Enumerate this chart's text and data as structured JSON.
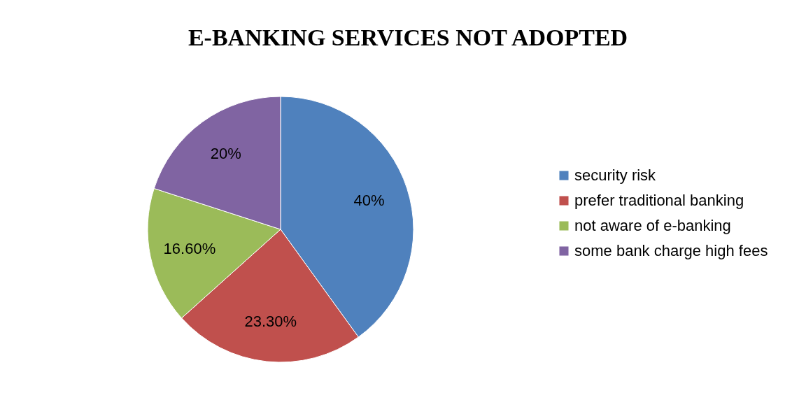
{
  "chart_data": {
    "type": "pie",
    "title": "E-BANKING SERVICES NOT ADOPTED",
    "categories": [
      "security risk",
      "prefer traditional banking",
      "not aware of e-banking",
      "some bank charge high fees"
    ],
    "values": [
      40,
      23.3,
      16.6,
      20
    ],
    "value_labels": [
      "40%",
      "23.30%",
      "16.60%",
      "20%"
    ],
    "colors": [
      "#4f81bd",
      "#c0504d",
      "#9bbb59",
      "#8064a2"
    ],
    "legend": "right"
  }
}
